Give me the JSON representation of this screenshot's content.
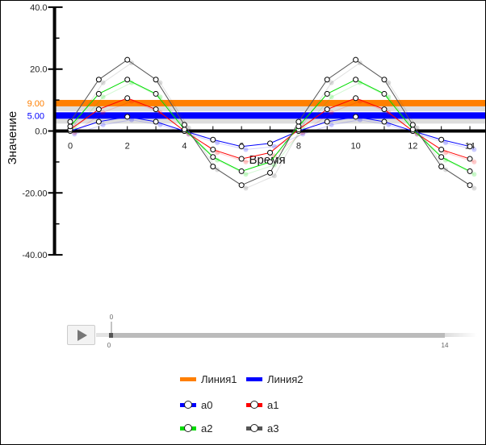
{
  "chart_data": {
    "type": "line",
    "xlabel": "Время",
    "ylabel": "Значение",
    "xlim": [
      -0.55,
      14.3
    ],
    "ylim": [
      -40,
      40
    ],
    "x": [
      0,
      1,
      2,
      3,
      4,
      5,
      6,
      7,
      8,
      9,
      10,
      11,
      12,
      13,
      14
    ],
    "x_ticks": [
      "0",
      "2",
      "4",
      "6",
      "8",
      "10",
      "12",
      "14"
    ],
    "y_ticks": [
      {
        "v": 40,
        "label": "40.0"
      },
      {
        "v": 20,
        "label": "20.0"
      },
      {
        "v": 0,
        "label": "0.0"
      },
      {
        "v": -20,
        "label": "-20.00"
      },
      {
        "v": -40,
        "label": "-40.00"
      }
    ],
    "series": [
      {
        "name": "a0",
        "color": "#0000ff",
        "values": [
          0,
          3,
          4.6,
          3,
          0,
          -2.8,
          -5,
          -4,
          0,
          3,
          4.6,
          3,
          0,
          -2.8,
          -5
        ]
      },
      {
        "name": "a1",
        "color": "#ff0000",
        "values": [
          0.5,
          7,
          10.6,
          7,
          0,
          -6,
          -9,
          -7,
          0.5,
          7,
          10.6,
          7,
          0,
          -6,
          -9
        ]
      },
      {
        "name": "a2",
        "color": "#00dd00",
        "values": [
          1.5,
          12,
          16.6,
          12,
          0.5,
          -8.4,
          -13,
          -10,
          1.5,
          12,
          16.6,
          12,
          0.5,
          -8.4,
          -13
        ]
      },
      {
        "name": "a3",
        "color": "#555555",
        "values": [
          3,
          16.6,
          23,
          16.6,
          2,
          -11.5,
          -17.5,
          -13.5,
          3,
          16.6,
          23,
          16.6,
          2,
          -11.5,
          -17.5
        ]
      }
    ],
    "reference_lines": [
      {
        "name": "Линия1",
        "value": 9,
        "label": "9.00",
        "color": "#ff7f00"
      },
      {
        "name": "Линия2",
        "value": 5,
        "label": "5.00",
        "color": "#0000ff"
      }
    ]
  },
  "timeline": {
    "current": "0",
    "min": "0",
    "max": "14"
  }
}
